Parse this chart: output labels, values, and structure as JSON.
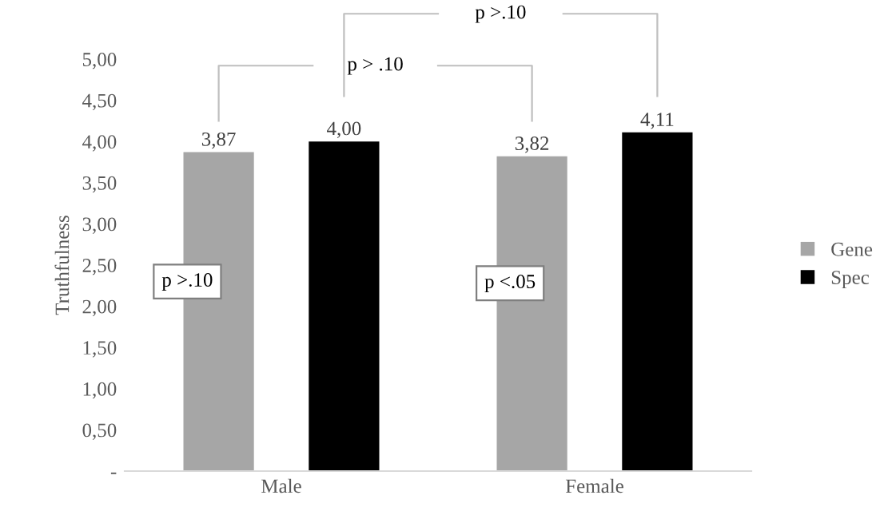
{
  "chart_data": {
    "type": "bar",
    "ylabel": "Truthfulness",
    "categories": [
      "Male",
      "Female"
    ],
    "series": [
      {
        "name": "Gene",
        "color": "#a6a6a6",
        "values": [
          3.87,
          3.82
        ],
        "value_labels": [
          "3,87",
          "3,82"
        ]
      },
      {
        "name": "Spec",
        "color": "#000000",
        "values": [
          4.0,
          4.11
        ],
        "value_labels": [
          "4,00",
          "4,11"
        ]
      }
    ],
    "ylim": [
      0,
      5
    ],
    "yticks": [
      {
        "value": 0,
        "label": "-"
      },
      {
        "value": 0.5,
        "label": "0,50"
      },
      {
        "value": 1,
        "label": "1,00"
      },
      {
        "value": 1.5,
        "label": "1,50"
      },
      {
        "value": 2,
        "label": "2,00"
      },
      {
        "value": 2.5,
        "label": "2,50"
      },
      {
        "value": 3,
        "label": "3,00"
      },
      {
        "value": 3.5,
        "label": "3,50"
      },
      {
        "value": 4,
        "label": "4,00"
      },
      {
        "value": 4.5,
        "label": "4,50"
      },
      {
        "value": 5,
        "label": "5,00"
      }
    ],
    "annotations": [
      "p >.10",
      "p > .10",
      "p >.10",
      "p <.05"
    ],
    "grid": false,
    "legend": "right"
  }
}
